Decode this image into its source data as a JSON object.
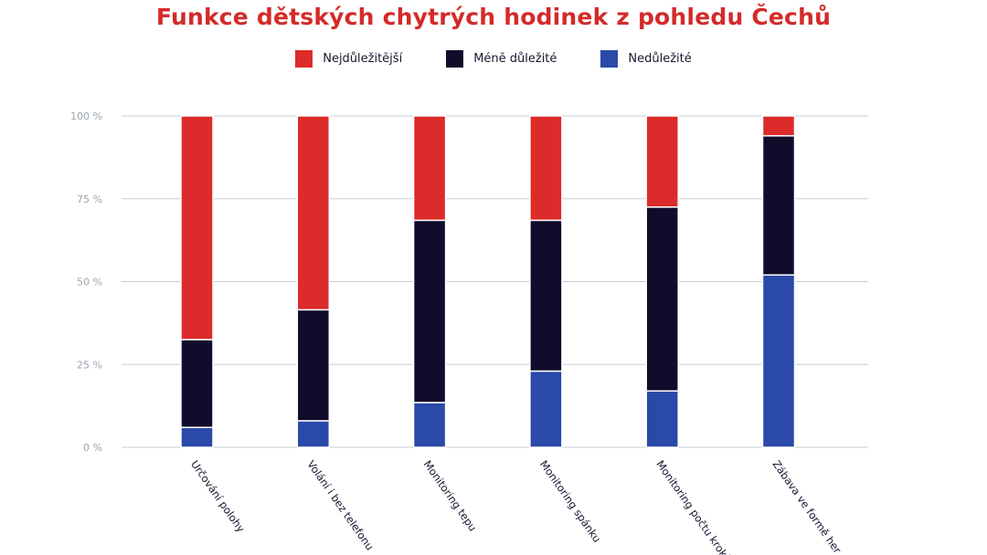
{
  "chart_data": {
    "type": "bar",
    "stacked": true,
    "title": "Funkce dětských chytrých hodinek z pohledu Čechů",
    "categories": [
      "Určování polohy",
      "Volání i bez telefonu",
      "Monitoring tepu",
      "Monitoring spánku",
      "Monitoring počtu kroků",
      "Zábava ve formě her"
    ],
    "series": [
      {
        "name": "Nedůležité",
        "color": "#2a49a8",
        "values": [
          6,
          8,
          13.5,
          23,
          17,
          52
        ]
      },
      {
        "name": "Méně důležité",
        "color": "#120c2c",
        "values": [
          26.5,
          33.5,
          55,
          45.5,
          55.5,
          42
        ]
      },
      {
        "name": "Nejdůležitější",
        "color": "#dd2a2a",
        "values": [
          67.5,
          58.5,
          31.5,
          31.5,
          27.5,
          6
        ]
      }
    ],
    "legend_order": [
      "Nejdůležitější",
      "Méně důležité",
      "Nedůležité"
    ],
    "ylim": [
      0,
      100
    ],
    "yticks": [
      0,
      25,
      50,
      75,
      100
    ],
    "ytick_labels": [
      "0 %",
      "25 %",
      "50 %",
      "75 %",
      "100 %"
    ],
    "grid": true,
    "legend_position": "top-center",
    "xlabel": "",
    "ylabel": ""
  }
}
